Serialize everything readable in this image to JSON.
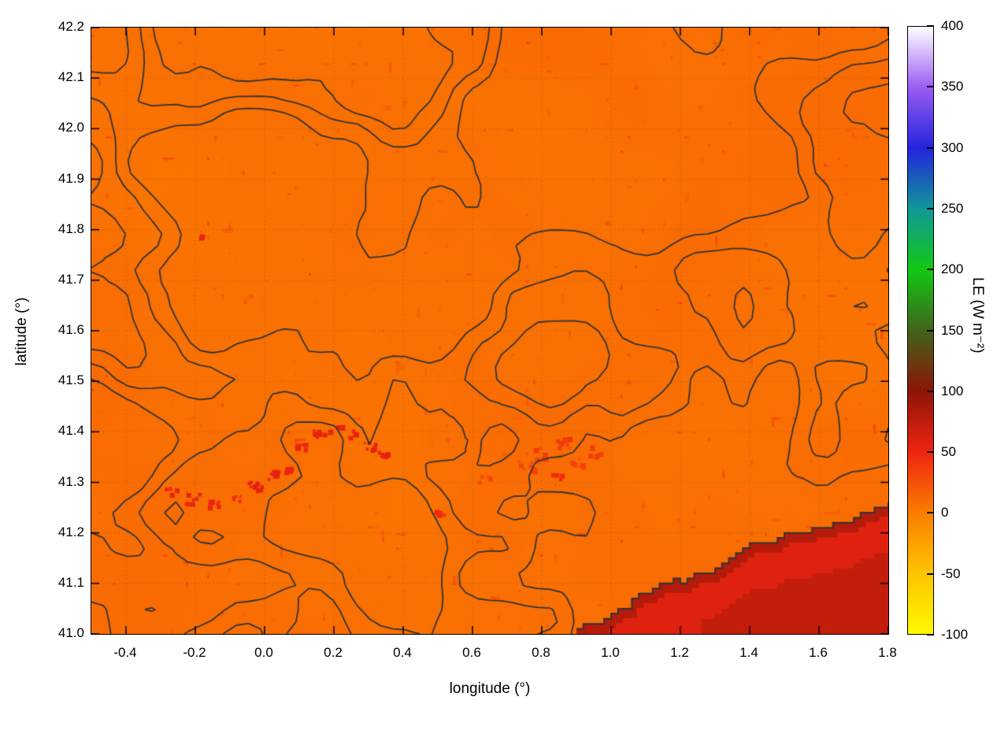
{
  "page": {
    "background": "#ffffff"
  },
  "chart_data": {
    "type": "heatmap",
    "title": "",
    "xlabel": "longitude (°)",
    "ylabel": "latitude (°)",
    "x_range": [
      -0.5,
      1.8
    ],
    "y_range": [
      41.0,
      42.2
    ],
    "x_ticks": [
      -0.4,
      -0.2,
      0.0,
      0.2,
      0.4,
      0.6,
      0.8,
      1.0,
      1.2,
      1.4,
      1.6,
      1.8
    ],
    "x_tick_labels": [
      "-0.4",
      "-0.2",
      "0.0",
      "0.2",
      "0.4",
      "0.6",
      "0.8",
      "1.0",
      "1.2",
      "1.4",
      "1.6",
      "1.8"
    ],
    "y_ticks": [
      41.0,
      41.1,
      41.2,
      41.3,
      41.4,
      41.5,
      41.6,
      41.7,
      41.8,
      41.9,
      42.0,
      42.1,
      42.2
    ],
    "y_tick_labels": [
      "41.0",
      "41.1",
      "41.2",
      "41.3",
      "41.4",
      "41.5",
      "41.6",
      "41.7",
      "41.8",
      "41.9",
      "42.0",
      "42.1",
      "42.2"
    ],
    "grid": true,
    "colorbar": {
      "label": "LE (W m⁻²)",
      "min": -100,
      "max": 400,
      "ticks": [
        -100,
        -50,
        0,
        50,
        100,
        150,
        200,
        250,
        300,
        350,
        400
      ],
      "tick_labels": [
        "-100",
        "-50",
        "0",
        "50",
        "100",
        "150",
        "200",
        "250",
        "300",
        "350",
        "400"
      ],
      "stops": [
        {
          "v": -100,
          "c": "#fff800"
        },
        {
          "v": -50,
          "c": "#ffc400"
        },
        {
          "v": 0,
          "c": "#fb7d00"
        },
        {
          "v": 50,
          "c": "#ef2410"
        },
        {
          "v": 100,
          "c": "#8c1508"
        },
        {
          "v": 150,
          "c": "#40641c"
        },
        {
          "v": 200,
          "c": "#12c912"
        },
        {
          "v": 250,
          "c": "#0f9898"
        },
        {
          "v": 300,
          "c": "#2424dc"
        },
        {
          "v": 350,
          "c": "#9a5cf2"
        },
        {
          "v": 400,
          "c": "#ffffff"
        }
      ]
    },
    "field": {
      "units": "W m⁻²",
      "background_value": 8,
      "sea": {
        "value": 58,
        "deep_value": 72,
        "coast_band_value": 80,
        "coastline": [
          [
            0.9,
            41.0
          ],
          [
            1.02,
            41.05
          ],
          [
            1.15,
            41.095
          ],
          [
            1.28,
            41.13
          ],
          [
            1.4,
            41.17
          ],
          [
            1.52,
            41.2
          ],
          [
            1.64,
            41.225
          ],
          [
            1.74,
            41.243
          ],
          [
            1.8,
            41.255
          ]
        ]
      },
      "hotspots": [
        {
          "lon": -0.27,
          "lat": 41.285,
          "value": 50,
          "n": 6,
          "r": 8
        },
        {
          "lon": -0.21,
          "lat": 41.27,
          "value": 52,
          "n": 8,
          "r": 9
        },
        {
          "lon": -0.15,
          "lat": 41.262,
          "value": 50,
          "n": 7,
          "r": 8
        },
        {
          "lon": -0.08,
          "lat": 41.27,
          "value": 48,
          "n": 5,
          "r": 7
        },
        {
          "lon": -0.03,
          "lat": 41.295,
          "value": 54,
          "n": 9,
          "r": 9
        },
        {
          "lon": 0.02,
          "lat": 41.315,
          "value": 52,
          "n": 8,
          "r": 9
        },
        {
          "lon": 0.06,
          "lat": 41.33,
          "value": 48,
          "n": 5,
          "r": 7
        },
        {
          "lon": 0.1,
          "lat": 41.375,
          "value": 50,
          "n": 7,
          "r": 8
        },
        {
          "lon": 0.15,
          "lat": 41.4,
          "value": 53,
          "n": 8,
          "r": 9
        },
        {
          "lon": 0.2,
          "lat": 41.41,
          "value": 51,
          "n": 7,
          "r": 8
        },
        {
          "lon": 0.25,
          "lat": 41.4,
          "value": 49,
          "n": 6,
          "r": 8
        },
        {
          "lon": 0.3,
          "lat": 41.375,
          "value": 55,
          "n": 8,
          "r": 8
        },
        {
          "lon": 0.34,
          "lat": 41.36,
          "value": 50,
          "n": 5,
          "r": 7
        },
        {
          "lon": 0.5,
          "lat": 41.245,
          "value": 46,
          "n": 4,
          "r": 6
        },
        {
          "lon": -0.19,
          "lat": 41.79,
          "value": 50,
          "n": 2,
          "r": 3
        },
        {
          "lon": 0.63,
          "lat": 41.31,
          "value": 28,
          "n": 4,
          "r": 7
        },
        {
          "lon": 0.75,
          "lat": 41.335,
          "value": 30,
          "n": 9,
          "r": 11
        },
        {
          "lon": 0.8,
          "lat": 41.36,
          "value": 33,
          "n": 9,
          "r": 11
        },
        {
          "lon": 0.86,
          "lat": 41.38,
          "value": 35,
          "n": 8,
          "r": 10
        },
        {
          "lon": 0.9,
          "lat": 41.34,
          "value": 30,
          "n": 8,
          "r": 10
        },
        {
          "lon": 0.95,
          "lat": 41.365,
          "value": 32,
          "n": 7,
          "r": 10
        },
        {
          "lon": 0.84,
          "lat": 41.315,
          "value": 45,
          "n": 4,
          "r": 6
        }
      ]
    },
    "contours": {
      "color": "#333333",
      "line_width": 1.8,
      "levels": [
        0.455,
        0.545,
        0.64
      ]
    },
    "values_grid": {
      "lons": [
        -0.5,
        -0.4,
        -0.3,
        -0.2,
        -0.1,
        0.0,
        0.1,
        0.2,
        0.3,
        0.4,
        0.5,
        0.6,
        0.7,
        0.8,
        0.9,
        1.0,
        1.1,
        1.2,
        1.3,
        1.4,
        1.5,
        1.6,
        1.7,
        1.8
      ],
      "lats": [
        41.0,
        41.1,
        41.2,
        41.3,
        41.4,
        41.5,
        41.6,
        41.7,
        41.8,
        41.9,
        42.0,
        42.1,
        42.2
      ],
      "values": [
        [
          10,
          10,
          10,
          10,
          10,
          10,
          10,
          10,
          10,
          10,
          10,
          10,
          10,
          10,
          58,
          58,
          58,
          58,
          58,
          58,
          58,
          58,
          58,
          58
        ],
        [
          10,
          10,
          10,
          10,
          10,
          10,
          10,
          10,
          10,
          10,
          10,
          10,
          10,
          10,
          10,
          10,
          10,
          58,
          58,
          58,
          58,
          58,
          58,
          58
        ],
        [
          10,
          10,
          10,
          10,
          10,
          10,
          10,
          10,
          10,
          10,
          10,
          10,
          10,
          10,
          10,
          10,
          10,
          10,
          10,
          10,
          58,
          58,
          58,
          58
        ],
        [
          10,
          10,
          10,
          45,
          45,
          45,
          45,
          10,
          10,
          10,
          10,
          10,
          10,
          30,
          30,
          10,
          10,
          10,
          10,
          10,
          10,
          10,
          10,
          10
        ],
        [
          10,
          10,
          10,
          10,
          10,
          10,
          45,
          45,
          45,
          10,
          10,
          10,
          10,
          30,
          30,
          30,
          10,
          10,
          10,
          10,
          10,
          10,
          10,
          10
        ],
        [
          10,
          10,
          10,
          10,
          10,
          10,
          10,
          10,
          10,
          10,
          10,
          10,
          10,
          10,
          10,
          10,
          10,
          10,
          10,
          10,
          10,
          10,
          10,
          10
        ],
        [
          10,
          10,
          10,
          10,
          10,
          10,
          10,
          10,
          10,
          10,
          10,
          10,
          10,
          10,
          10,
          10,
          10,
          10,
          10,
          10,
          10,
          10,
          10,
          10
        ],
        [
          10,
          10,
          10,
          10,
          10,
          10,
          10,
          10,
          10,
          10,
          10,
          10,
          10,
          10,
          10,
          10,
          10,
          10,
          10,
          10,
          10,
          10,
          10,
          10
        ],
        [
          10,
          10,
          10,
          10,
          10,
          10,
          10,
          10,
          10,
          10,
          10,
          10,
          10,
          10,
          10,
          10,
          10,
          10,
          10,
          10,
          10,
          10,
          10,
          10
        ],
        [
          10,
          10,
          10,
          10,
          10,
          10,
          10,
          10,
          10,
          10,
          10,
          10,
          10,
          10,
          10,
          10,
          10,
          10,
          10,
          10,
          10,
          10,
          10,
          10
        ],
        [
          10,
          10,
          10,
          10,
          10,
          10,
          10,
          10,
          10,
          10,
          10,
          10,
          10,
          10,
          10,
          10,
          10,
          10,
          10,
          10,
          10,
          10,
          10,
          10
        ],
        [
          10,
          10,
          10,
          10,
          10,
          10,
          10,
          10,
          10,
          10,
          10,
          10,
          10,
          10,
          10,
          10,
          10,
          10,
          10,
          10,
          10,
          10,
          10,
          10
        ],
        [
          10,
          10,
          10,
          10,
          10,
          10,
          10,
          10,
          10,
          10,
          10,
          10,
          10,
          10,
          10,
          10,
          10,
          10,
          10,
          10,
          10,
          10,
          10,
          10
        ]
      ]
    }
  }
}
